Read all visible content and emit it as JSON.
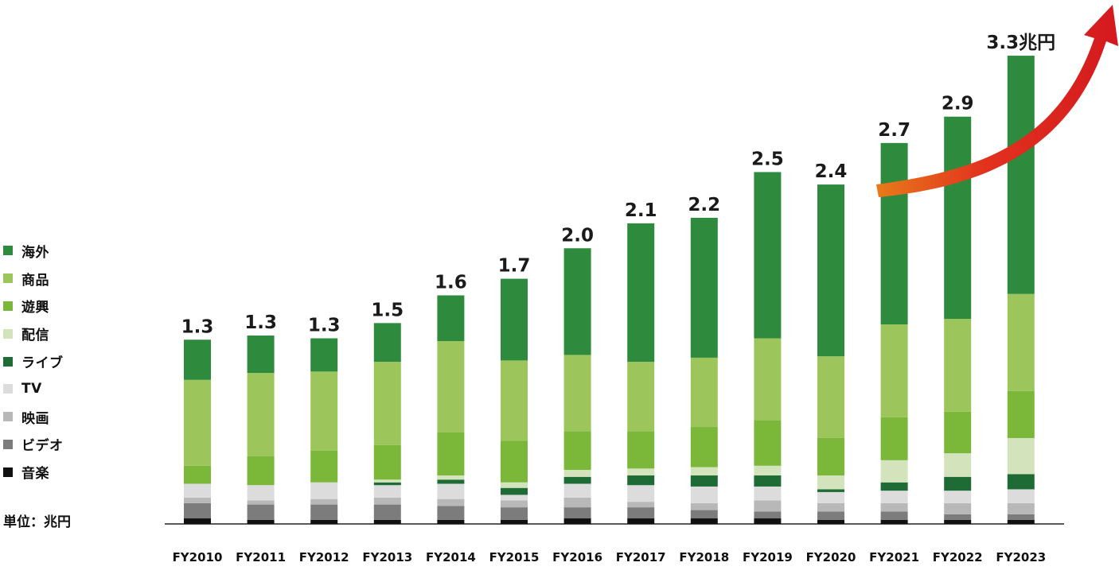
{
  "unit_label": "単位：兆円",
  "colors": {
    "海外": "#2e8b3e",
    "商品": "#9cc55c",
    "遊興": "#7bb83a",
    "配信": "#d3e4bc",
    "ライブ": "#1f6b35",
    "TV": "#dcdcdc",
    "映画": "#b8b8b8",
    "ビデオ": "#7c7c7c",
    "音楽": "#111111"
  },
  "chart_data": {
    "type": "bar",
    "stacked": true,
    "categories": [
      "FY2010",
      "FY2011",
      "FY2012",
      "FY2013",
      "FY2014",
      "FY2015",
      "FY2016",
      "FY2017",
      "FY2018",
      "FY2019",
      "FY2020",
      "FY2021",
      "FY2022",
      "FY2023"
    ],
    "totals_labels": [
      "1.3",
      "1.3",
      "1.3",
      "1.5",
      "1.6",
      "1.7",
      "2.0",
      "2.1",
      "2.2",
      "2.5",
      "2.4",
      "2.7",
      "2.9",
      "3.3兆円"
    ],
    "legend": [
      "海外",
      "商品",
      "遊興",
      "配信",
      "ライブ",
      "TV",
      "映画",
      "ビデオ",
      "音楽"
    ],
    "series": [
      {
        "name": "音楽",
        "values": [
          0.04,
          0.03,
          0.03,
          0.03,
          0.03,
          0.03,
          0.04,
          0.04,
          0.04,
          0.04,
          0.03,
          0.03,
          0.03,
          0.03
        ]
      },
      {
        "name": "ビデオ",
        "values": [
          0.11,
          0.11,
          0.11,
          0.11,
          0.1,
          0.09,
          0.08,
          0.08,
          0.06,
          0.05,
          0.06,
          0.06,
          0.04,
          0.04
        ]
      },
      {
        "name": "映画",
        "values": [
          0.04,
          0.03,
          0.04,
          0.05,
          0.05,
          0.05,
          0.07,
          0.04,
          0.05,
          0.08,
          0.06,
          0.06,
          0.08,
          0.08
        ]
      },
      {
        "name": "TV",
        "values": [
          0.1,
          0.11,
          0.12,
          0.09,
          0.11,
          0.04,
          0.1,
          0.12,
          0.12,
          0.1,
          0.08,
          0.09,
          0.09,
          0.1
        ]
      },
      {
        "name": "ライブ",
        "values": [
          0.0,
          0.0,
          0.0,
          0.02,
          0.03,
          0.05,
          0.05,
          0.07,
          0.08,
          0.08,
          0.02,
          0.06,
          0.1,
          0.11
        ]
      },
      {
        "name": "配信",
        "values": [
          0.0,
          0.0,
          0.0,
          0.02,
          0.03,
          0.04,
          0.05,
          0.05,
          0.06,
          0.07,
          0.1,
          0.16,
          0.17,
          0.26
        ]
      },
      {
        "name": "遊興",
        "values": [
          0.13,
          0.21,
          0.23,
          0.25,
          0.31,
          0.3,
          0.28,
          0.27,
          0.29,
          0.33,
          0.27,
          0.31,
          0.3,
          0.34
        ]
      },
      {
        "name": "商品",
        "values": [
          0.62,
          0.6,
          0.57,
          0.6,
          0.66,
          0.58,
          0.55,
          0.5,
          0.5,
          0.59,
          0.59,
          0.67,
          0.67,
          0.7
        ]
      },
      {
        "name": "海外",
        "values": [
          0.29,
          0.27,
          0.24,
          0.28,
          0.33,
          0.59,
          0.77,
          1.0,
          1.01,
          1.2,
          1.24,
          1.31,
          1.46,
          1.72
        ]
      }
    ],
    "ylim": [
      0,
      3.3
    ]
  }
}
